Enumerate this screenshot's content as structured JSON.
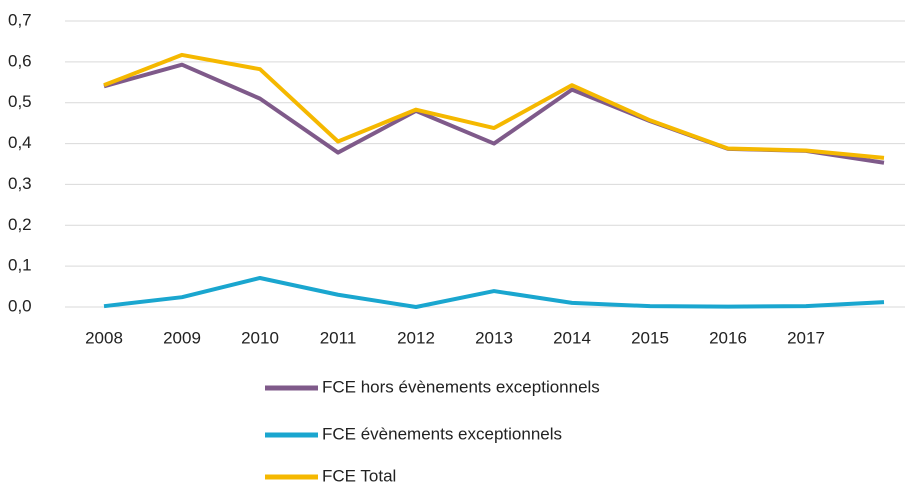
{
  "chart_data": {
    "type": "line",
    "categories": [
      "2008",
      "2009",
      "2010",
      "2011",
      "2012",
      "2013",
      "2014",
      "2015",
      "2016",
      "2017",
      null
    ],
    "series": [
      {
        "name": "FCE hors évènements exceptionnels",
        "color": "#7f5a8a",
        "values": [
          0.54,
          0.593,
          0.51,
          0.378,
          0.48,
          0.4,
          0.532,
          0.455,
          0.387,
          0.382,
          0.353
        ]
      },
      {
        "name": "FCE évènements exceptionnels",
        "color": "#1aa6cf",
        "values": [
          0.002,
          0.024,
          0.071,
          0.03,
          0.0,
          0.039,
          0.01,
          0.002,
          0.001,
          0.002,
          0.012
        ]
      },
      {
        "name": "FCE Total",
        "color": "#f5b800",
        "values": [
          0.543,
          0.617,
          0.582,
          0.405,
          0.483,
          0.438,
          0.543,
          0.457,
          0.388,
          0.383,
          0.365
        ]
      }
    ],
    "ylim": [
      0,
      0.7
    ],
    "yticks": [
      {
        "value": 0,
        "label": "0,0"
      },
      {
        "value": 0.1,
        "label": "0,1"
      },
      {
        "value": 0.2,
        "label": "0,2"
      },
      {
        "value": 0.3,
        "label": "0,3"
      },
      {
        "value": 0.4,
        "label": "0,4"
      },
      {
        "value": 0.5,
        "label": "0,5"
      },
      {
        "value": 0.6,
        "label": "0,6"
      },
      {
        "value": 0.7,
        "label": "0,7"
      }
    ],
    "grid": true,
    "legend": "bottom"
  }
}
